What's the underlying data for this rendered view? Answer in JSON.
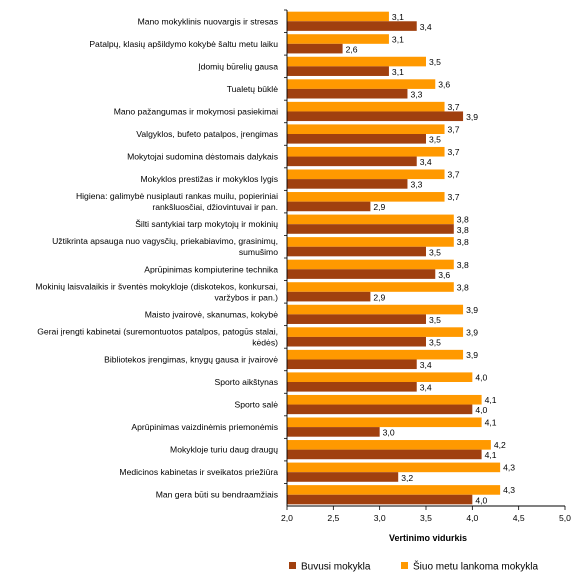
{
  "chart_data": {
    "type": "bar",
    "orientation": "horizontal",
    "xlabel": "Vertinimo vidurkis",
    "xlim": [
      2.0,
      5.0
    ],
    "xticks": [
      "2,0",
      "2,5",
      "3,0",
      "3,5",
      "4,0",
      "4,5",
      "5,0"
    ],
    "legend_position": "bottom",
    "grid": false,
    "categories": [
      [
        "Mano mokyklinis nuovargis ir stresas"
      ],
      [
        "Patalpų, klasių apšildymo kokybė šaltu metu laiku"
      ],
      [
        "Įdomių būrelių gausa"
      ],
      [
        "Tualetų būklė"
      ],
      [
        "Mano pažangumas ir mokymosi pasiekimai"
      ],
      [
        "Valgyklos, bufeto patalpos, įrengimas"
      ],
      [
        "Mokytojai sudomina dėstomais dalykais"
      ],
      [
        "Mokyklos prestižas ir mokyklos lygis"
      ],
      [
        "Higiena: galimybė nusiplauti rankas muilu, popieriniai",
        "rankšluosčiai, džiovintuvai ir pan."
      ],
      [
        "Šilti santykiai tarp mokytojų ir mokinių"
      ],
      [
        "Užtikrinta apsauga nuo vagysčių, priekabiavimo, grasinimų,",
        "sumušimo"
      ],
      [
        "Aprūpinimas kompiuterine technika"
      ],
      [
        "Mokinių laisvalaikis ir šventės mokykloje (diskotekos, konkursai,",
        "varžybos ir pan.)"
      ],
      [
        "Maisto įvairovė, skanumas, kokybė"
      ],
      [
        "Gerai įrengti kabinetai (suremontuotos patalpos, patogūs stalai,",
        "kėdės)"
      ],
      [
        "Bibliotekos įrengimas, knygų gausa ir įvairovė"
      ],
      [
        "Sporto aikštynas"
      ],
      [
        "Sporto salė"
      ],
      [
        "Aprūpinimas vaizdinėmis priemonėmis"
      ],
      [
        "Mokykloje turiu daug draugų"
      ],
      [
        "Medicinos kabinetas ir sveikatos priežiūra"
      ],
      [
        "Man gera būti su bendraamžiais"
      ]
    ],
    "series": [
      {
        "name": "Šiuo metu lankoma mokykla",
        "color": "#FF9900",
        "values": [
          3.1,
          3.1,
          3.5,
          3.6,
          3.7,
          3.7,
          3.7,
          3.7,
          3.7,
          3.8,
          3.8,
          3.8,
          3.8,
          3.9,
          3.9,
          3.9,
          4.0,
          4.1,
          4.1,
          4.2,
          4.3,
          4.3
        ],
        "labels": [
          "3,1",
          "3,1",
          "3,5",
          "3,6",
          "3,7",
          "3,7",
          "3,7",
          "3,7",
          "3,7",
          "3,8",
          "3,8",
          "3,8",
          "3,8",
          "3,9",
          "3,9",
          "3,9",
          "4,0",
          "4,1",
          "4,1",
          "4,2",
          "4,3",
          "4,3"
        ]
      },
      {
        "name": "Buvusi mokykla",
        "color": "#A0400F",
        "values": [
          3.4,
          2.6,
          3.1,
          3.3,
          3.9,
          3.5,
          3.4,
          3.3,
          2.9,
          3.8,
          3.5,
          3.6,
          2.9,
          3.5,
          3.5,
          3.4,
          3.4,
          4.0,
          3.0,
          4.1,
          3.2,
          4.0
        ],
        "labels": [
          "3,4",
          "2,6",
          "3,1",
          "3,3",
          "3,9",
          "3,5",
          "3,4",
          "3,3",
          "2,9",
          "3,8",
          "3,5",
          "3,6",
          "2,9",
          "3,5",
          "3,5",
          "3,4",
          "3,4",
          "4,0",
          "3,0",
          "4,1",
          "3,2",
          "4,0"
        ]
      }
    ]
  }
}
